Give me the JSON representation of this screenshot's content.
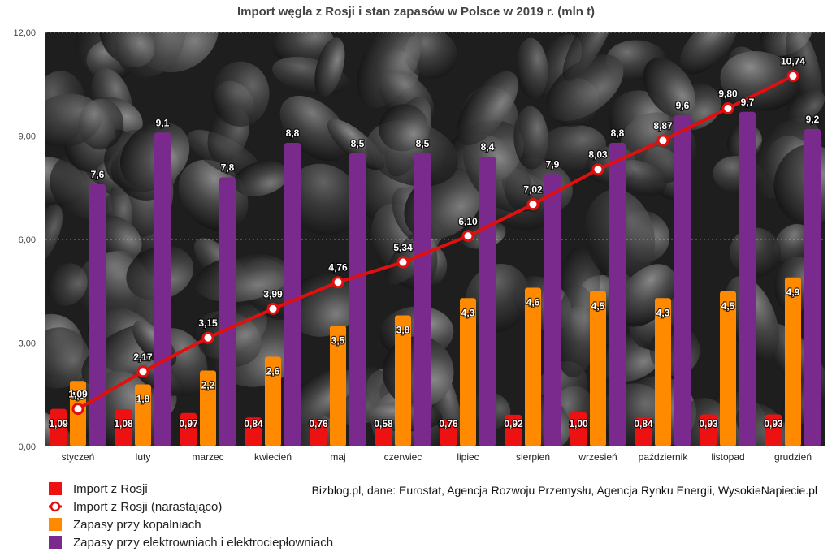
{
  "chart_data": {
    "type": "bar",
    "title": "Import węgla z Rosji i stan zapasów w Polsce w 2019 r. (mln t)",
    "categories": [
      "styczeń",
      "luty",
      "marzec",
      "kwiecień",
      "maj",
      "czerwiec",
      "lipiec",
      "sierpień",
      "wrzesień",
      "październik",
      "listopad",
      "grudzień"
    ],
    "ylim": [
      0,
      12
    ],
    "yticks": [
      "0,00",
      "3,00",
      "6,00",
      "9,00",
      "12,00"
    ],
    "ytick_values": [
      0,
      3,
      6,
      9,
      12
    ],
    "grid": true,
    "series": [
      {
        "name": "Import z Rosji",
        "kind": "bar",
        "color": "#ee1111",
        "values": [
          1.09,
          1.08,
          0.97,
          0.84,
          0.76,
          0.58,
          0.76,
          0.92,
          1.0,
          0.84,
          0.93,
          0.93
        ],
        "labels": [
          "1,09",
          "1,08",
          "0,97",
          "0,84",
          "0,76",
          "0,58",
          "0,76",
          "0,92",
          "1,00",
          "0,84",
          "0,93",
          "0,93"
        ]
      },
      {
        "name": "Zapasy przy kopalniach",
        "kind": "bar",
        "color": "#ff8a00",
        "values": [
          1.9,
          1.8,
          2.2,
          2.6,
          3.5,
          3.8,
          4.3,
          4.6,
          4.5,
          4.3,
          4.5,
          4.9
        ],
        "labels": [
          "1,9",
          "1,8",
          "2,2",
          "2,6",
          "3,5",
          "3,8",
          "4,3",
          "4,6",
          "4,5",
          "4,3",
          "4,5",
          "4,9"
        ]
      },
      {
        "name": "Zapasy przy elektrowniach i elektrociepłowniach",
        "kind": "bar",
        "color": "#7a2a8c",
        "values": [
          7.6,
          9.1,
          7.8,
          8.8,
          8.5,
          8.5,
          8.4,
          7.9,
          8.8,
          9.6,
          9.7,
          9.2
        ],
        "labels": [
          "7,6",
          "9,1",
          "7,8",
          "8,8",
          "8,5",
          "8,5",
          "8,4",
          "7,9",
          "8,8",
          "9,6",
          "9,7",
          "9,2"
        ]
      },
      {
        "name": "Import z Rosji (narastająco)",
        "kind": "line",
        "color": "#e01010",
        "values": [
          1.09,
          2.17,
          3.15,
          3.99,
          4.76,
          5.34,
          6.1,
          7.02,
          8.03,
          8.87,
          9.8,
          10.74
        ],
        "labels": [
          "1,09",
          "2,17",
          "3,15",
          "3,99",
          "4,76",
          "5,34",
          "6,10",
          "7,02",
          "8,03",
          "8,87",
          "9,80",
          "10,74"
        ]
      }
    ]
  },
  "legend": [
    {
      "label": "Import z Rosji",
      "color": "#ee1111",
      "kind": "bar"
    },
    {
      "label": "Import z Rosji (narastająco)",
      "color": "#e01010",
      "kind": "line"
    },
    {
      "label": "Zapasy przy kopalniach",
      "color": "#ff8a00",
      "kind": "bar"
    },
    {
      "label": "Zapasy przy elektrowniach i elektrociepłowniach",
      "color": "#7a2a8c",
      "kind": "bar"
    }
  ],
  "source": "Bizblog.pl, dane: Eurostat, Agencja Rozwoju Przemysłu, Agencja Rynku Energii, WysokieNapiecie.pl"
}
